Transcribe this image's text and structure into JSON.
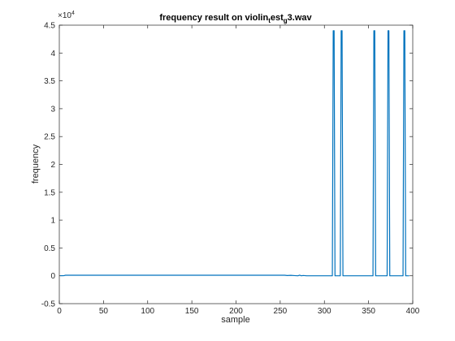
{
  "chart_data": {
    "type": "line",
    "title": "frequency result on violin",
    "title_parts": {
      "base": "frequency result on violin",
      "sub1": "t",
      "mid": "est",
      "sub2": "g",
      "tail": "3.wav"
    },
    "xlabel": "sample",
    "ylabel": "frequency",
    "xlim": [
      0,
      400
    ],
    "ylim": [
      -0.5,
      4.5
    ],
    "y_multiplier_label": "×10",
    "y_multiplier_exponent": "4",
    "x_ticks": [
      0,
      50,
      100,
      150,
      200,
      250,
      300,
      350,
      400
    ],
    "x_tick_labels": [
      "0",
      "50",
      "100",
      "150",
      "200",
      "250",
      "300",
      "350",
      "400"
    ],
    "y_ticks": [
      -0.5,
      0,
      0.5,
      1,
      1.5,
      2,
      2.5,
      3,
      3.5,
      4,
      4.5
    ],
    "y_tick_labels": [
      "-0.5",
      "0",
      "0.5",
      "1",
      "1.5",
      "2",
      "2.5",
      "3",
      "3.5",
      "4",
      "4.5"
    ],
    "series": [
      {
        "name": "frequency",
        "color": "#0072bd",
        "x": [
          1,
          5,
          7,
          100,
          200,
          255,
          258,
          262,
          266,
          270,
          272,
          274,
          276,
          280,
          284,
          290,
          300,
          308,
          309,
          310,
          311,
          312,
          317,
          318,
          319,
          320,
          321,
          330,
          340,
          354,
          355,
          356,
          357,
          358,
          370,
          371,
          372,
          373,
          374,
          388,
          389,
          390,
          391,
          392,
          396
        ],
        "y": [
          0.002,
          0.002,
          0.01,
          0.01,
          0.01,
          0.01,
          0.005,
          0.008,
          0.004,
          0.0,
          0.012,
          0.0,
          0.006,
          0.0,
          0.0,
          0.0,
          0.0,
          0.0,
          0.0,
          4.4,
          4.4,
          0.0,
          0.0,
          0.0,
          4.4,
          4.4,
          0.0,
          0.0,
          0.0,
          0.0,
          0.0,
          4.4,
          4.4,
          0.0,
          0.0,
          0.0,
          4.4,
          4.4,
          0.0,
          0.0,
          0.0,
          4.4,
          4.4,
          0.0,
          0.0
        ]
      }
    ],
    "grid": false,
    "box": true
  }
}
